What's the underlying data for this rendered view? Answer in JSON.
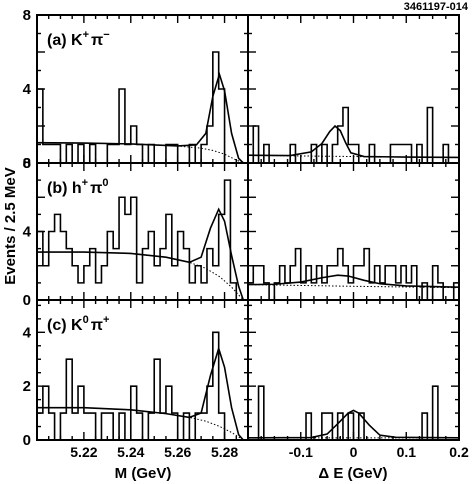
{
  "figure_id": "3461197-014",
  "ylabel": "Events / 2.5 MeV",
  "chart_data": [
    {
      "type": "histogram",
      "panel": "left-top",
      "label_parts": {
        "open": "(a)",
        "p1": "K",
        "s1": "+",
        "p2": "π",
        "s2": "−"
      },
      "xlabel": "M (GeV)",
      "xlim": [
        5.2,
        5.29
      ],
      "ylim": [
        0,
        8
      ],
      "yticks": [
        0,
        4,
        8
      ],
      "bin_edges_start": 5.2,
      "bin_width": 0.0025,
      "counts": [
        4,
        1,
        1,
        1,
        0,
        1,
        0,
        1,
        0,
        1,
        0,
        0,
        1,
        1,
        4,
        1,
        2,
        1,
        0,
        1,
        0,
        0,
        1,
        1,
        0,
        0,
        1,
        0,
        1,
        2,
        6,
        4,
        0,
        0,
        0,
        0
      ],
      "fit_total": [
        [
          5.2,
          1.1
        ],
        [
          5.22,
          1.08
        ],
        [
          5.24,
          1.03
        ],
        [
          5.26,
          0.92
        ],
        [
          5.268,
          0.98
        ],
        [
          5.272,
          1.6
        ],
        [
          5.275,
          3.6
        ],
        [
          5.2778,
          4.8
        ],
        [
          5.28,
          3.9
        ],
        [
          5.283,
          1.6
        ],
        [
          5.286,
          0.25
        ],
        [
          5.288,
          0
        ]
      ],
      "fit_background": [
        [
          5.2,
          1.1
        ],
        [
          5.22,
          1.08
        ],
        [
          5.24,
          1.03
        ],
        [
          5.26,
          0.92
        ],
        [
          5.27,
          0.8
        ],
        [
          5.275,
          0.68
        ],
        [
          5.28,
          0.48
        ],
        [
          5.284,
          0.22
        ],
        [
          5.288,
          0
        ]
      ]
    },
    {
      "type": "histogram",
      "panel": "right-top",
      "label_parts": {},
      "xlabel": "",
      "xlim": [
        -0.2,
        0.2
      ],
      "ylim": [
        0,
        8
      ],
      "yticks": [],
      "bin_edges_start": -0.2,
      "bin_width": 0.01,
      "counts": [
        0,
        2,
        0,
        1,
        0,
        0,
        0,
        0,
        1,
        0,
        0,
        0,
        1,
        0,
        1,
        0,
        1,
        2,
        3,
        1,
        1,
        0,
        0,
        1,
        0,
        0,
        0,
        1,
        1,
        1,
        1,
        0,
        1,
        0,
        3,
        0,
        0,
        1,
        0,
        0
      ],
      "fit_total": [
        [
          -0.2,
          0.42
        ],
        [
          -0.12,
          0.4
        ],
        [
          -0.08,
          0.6
        ],
        [
          -0.06,
          1.05
        ],
        [
          -0.045,
          1.7
        ],
        [
          -0.035,
          2.0
        ],
        [
          -0.025,
          1.75
        ],
        [
          -0.015,
          1.1
        ],
        [
          -0.005,
          0.55
        ],
        [
          0.02,
          0.35
        ],
        [
          0.1,
          0.32
        ],
        [
          0.2,
          0.3
        ]
      ],
      "fit_background": [
        [
          -0.2,
          0.42
        ],
        [
          -0.1,
          0.38
        ],
        [
          0,
          0.35
        ],
        [
          0.1,
          0.32
        ],
        [
          0.2,
          0.3
        ]
      ]
    },
    {
      "type": "histogram",
      "panel": "left-middle",
      "label_parts": {
        "open": "(b)",
        "p1": "h",
        "s1": "+",
        "p2": "π",
        "s2": "0"
      },
      "xlabel": "M (GeV)",
      "xlim": [
        5.2,
        5.29
      ],
      "ylim": [
        0,
        8
      ],
      "yticks": [
        0,
        4,
        8
      ],
      "bin_edges_start": 5.2,
      "bin_width": 0.0025,
      "counts": [
        4,
        2,
        4,
        5,
        4,
        3,
        2,
        1,
        2,
        3,
        1,
        2,
        4,
        3,
        6,
        5,
        6,
        1,
        3,
        4,
        2,
        3,
        5,
        2,
        4,
        3,
        1,
        2,
        1,
        3,
        2,
        5,
        7,
        1,
        0,
        0
      ],
      "fit_total": [
        [
          5.2,
          2.8
        ],
        [
          5.22,
          2.8
        ],
        [
          5.24,
          2.72
        ],
        [
          5.255,
          2.5
        ],
        [
          5.265,
          2.2
        ],
        [
          5.27,
          2.5
        ],
        [
          5.274,
          4.2
        ],
        [
          5.2775,
          5.3
        ],
        [
          5.28,
          4.6
        ],
        [
          5.283,
          2.6
        ],
        [
          5.286,
          0.8
        ],
        [
          5.288,
          0
        ]
      ],
      "fit_background": [
        [
          5.2,
          2.8
        ],
        [
          5.22,
          2.8
        ],
        [
          5.24,
          2.72
        ],
        [
          5.255,
          2.5
        ],
        [
          5.265,
          2.2
        ],
        [
          5.272,
          1.85
        ],
        [
          5.278,
          1.35
        ],
        [
          5.283,
          0.75
        ],
        [
          5.288,
          0
        ]
      ]
    },
    {
      "type": "histogram",
      "panel": "right-middle",
      "label_parts": {},
      "xlabel": "",
      "xlim": [
        -0.2,
        0.2
      ],
      "ylim": [
        0,
        8
      ],
      "yticks": [],
      "bin_edges_start": -0.2,
      "bin_width": 0.01,
      "counts": [
        1,
        2,
        2,
        1,
        0,
        1,
        2,
        1,
        2,
        3,
        1,
        2,
        1,
        2,
        1,
        2,
        2,
        3,
        2,
        1,
        2,
        2,
        3,
        1,
        2,
        1,
        2,
        2,
        1,
        2,
        1,
        2,
        0,
        1,
        0,
        2,
        1,
        0,
        0,
        1
      ],
      "fit_total": [
        [
          -0.2,
          0.9
        ],
        [
          -0.15,
          0.92
        ],
        [
          -0.1,
          1.05
        ],
        [
          -0.06,
          1.3
        ],
        [
          -0.03,
          1.45
        ],
        [
          -0.01,
          1.4
        ],
        [
          0.02,
          1.15
        ],
        [
          0.05,
          0.95
        ],
        [
          0.1,
          0.82
        ],
        [
          0.2,
          0.75
        ]
      ],
      "fit_background": [
        [
          -0.2,
          0.9
        ],
        [
          -0.1,
          0.85
        ],
        [
          0,
          0.8
        ],
        [
          0.1,
          0.76
        ],
        [
          0.2,
          0.72
        ]
      ]
    },
    {
      "type": "histogram",
      "panel": "left-bottom",
      "label_parts": {
        "open": "(c)",
        "p1": "K",
        "s1": "0",
        "p2": "π",
        "s2": "+"
      },
      "xlabel": "M (GeV)",
      "xlim": [
        5.2,
        5.29
      ],
      "ylim": [
        0,
        5.2
      ],
      "yticks": [
        0,
        2,
        4
      ],
      "tick_labels_x": [
        "5.22",
        "5.24",
        "5.26",
        "5.28"
      ],
      "tick_values_x": [
        5.22,
        5.24,
        5.26,
        5.28
      ],
      "bin_edges_start": 5.2,
      "bin_width": 0.0025,
      "counts": [
        1,
        2,
        1,
        0,
        1,
        3,
        1,
        2,
        1,
        1,
        0,
        1,
        1,
        0,
        1,
        0,
        2,
        1,
        0,
        1,
        3,
        1,
        2,
        1,
        0,
        1,
        0,
        1,
        1,
        2,
        4,
        1,
        0,
        0,
        0,
        0
      ],
      "fit_total": [
        [
          5.2,
          1.2
        ],
        [
          5.22,
          1.2
        ],
        [
          5.24,
          1.12
        ],
        [
          5.255,
          0.98
        ],
        [
          5.265,
          0.84
        ],
        [
          5.27,
          1.0
        ],
        [
          5.274,
          2.4
        ],
        [
          5.2775,
          3.4
        ],
        [
          5.28,
          2.7
        ],
        [
          5.283,
          1.2
        ],
        [
          5.286,
          0.2
        ],
        [
          5.288,
          0
        ]
      ],
      "fit_background": [
        [
          5.2,
          1.2
        ],
        [
          5.22,
          1.2
        ],
        [
          5.24,
          1.12
        ],
        [
          5.255,
          0.98
        ],
        [
          5.265,
          0.84
        ],
        [
          5.272,
          0.7
        ],
        [
          5.278,
          0.5
        ],
        [
          5.283,
          0.28
        ],
        [
          5.288,
          0
        ]
      ]
    },
    {
      "type": "histogram",
      "panel": "right-bottom",
      "label_parts": {},
      "xlabel": "Δ E (GeV)",
      "xlim": [
        -0.2,
        0.2
      ],
      "ylim": [
        0,
        5.2
      ],
      "yticks": [],
      "tick_labels_x": [
        "-0.1",
        "0",
        "0.1",
        "0.2"
      ],
      "tick_values_x": [
        -0.1,
        0,
        0.1,
        0.2
      ],
      "bin_edges_start": -0.2,
      "bin_width": 0.01,
      "counts": [
        0,
        0,
        2,
        0,
        0,
        0,
        0,
        0,
        0,
        0,
        0,
        1,
        0,
        0,
        1,
        1,
        0,
        1,
        0,
        1,
        0,
        1,
        0,
        0,
        0,
        0,
        0,
        0,
        0,
        0,
        0,
        0,
        0,
        1,
        0,
        2,
        0,
        0,
        0,
        0
      ],
      "fit_total": [
        [
          -0.2,
          0.08
        ],
        [
          -0.08,
          0.09
        ],
        [
          -0.05,
          0.22
        ],
        [
          -0.03,
          0.6
        ],
        [
          -0.01,
          1.0
        ],
        [
          0.0,
          1.1
        ],
        [
          0.01,
          1.0
        ],
        [
          0.03,
          0.55
        ],
        [
          0.05,
          0.18
        ],
        [
          0.08,
          0.1
        ],
        [
          0.2,
          0.08
        ]
      ],
      "fit_background": [
        [
          -0.2,
          0.08
        ],
        [
          0,
          0.08
        ],
        [
          0.2,
          0.08
        ]
      ]
    }
  ]
}
